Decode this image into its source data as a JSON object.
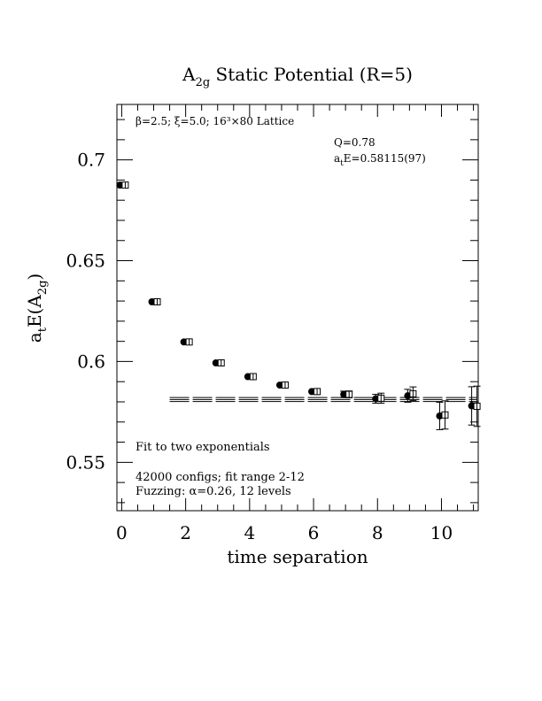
{
  "chart_data": {
    "type": "scatter",
    "title": {
      "main": "A",
      "sub": "2g",
      "rest": " Static Potential (R=5)"
    },
    "xlabel": "time separation",
    "ylabel": {
      "pre": "a",
      "pre_sub": "t",
      "mid": "E(A",
      "sub": "2g",
      "post": ")"
    },
    "xlim": [
      -0.15,
      11.15
    ],
    "ylim": [
      0.526,
      0.7275
    ],
    "x_ticks": [
      {
        "value": 0,
        "label": "0"
      },
      {
        "value": 2,
        "label": "2"
      },
      {
        "value": 4,
        "label": "4"
      },
      {
        "value": 6,
        "label": "6"
      },
      {
        "value": 8,
        "label": "8"
      },
      {
        "value": 10,
        "label": "10"
      }
    ],
    "y_ticks": [
      {
        "value": 0.55,
        "label": "0.55"
      },
      {
        "value": 0.6,
        "label": "0.6"
      },
      {
        "value": 0.65,
        "label": "0.65"
      },
      {
        "value": 0.7,
        "label": "0.7"
      }
    ],
    "series": [
      {
        "marker": "filled-circle",
        "points": [
          {
            "x": 0,
            "y": 0.6875,
            "err": 0.0006
          },
          {
            "x": 1,
            "y": 0.6296,
            "err": 0.0006
          },
          {
            "x": 2,
            "y": 0.6097,
            "err": 0.0007
          },
          {
            "x": 3,
            "y": 0.5993,
            "err": 0.0008
          },
          {
            "x": 4,
            "y": 0.5925,
            "err": 0.0009
          },
          {
            "x": 5,
            "y": 0.5883,
            "err": 0.0011
          },
          {
            "x": 6,
            "y": 0.5851,
            "err": 0.0013
          },
          {
            "x": 7,
            "y": 0.5837,
            "err": 0.0016
          },
          {
            "x": 8,
            "y": 0.5815,
            "err": 0.0022
          },
          {
            "x": 9,
            "y": 0.583,
            "err": 0.0032
          },
          {
            "x": 10,
            "y": 0.573,
            "err": 0.0068
          },
          {
            "x": 11,
            "y": 0.578,
            "err": 0.0095
          }
        ]
      },
      {
        "marker": "open-square",
        "points": [
          {
            "x": 0,
            "y": 0.6875,
            "err": 0.0007
          },
          {
            "x": 1,
            "y": 0.6296,
            "err": 0.0007
          },
          {
            "x": 2,
            "y": 0.6097,
            "err": 0.0008
          },
          {
            "x": 3,
            "y": 0.5993,
            "err": 0.0009
          },
          {
            "x": 4,
            "y": 0.5925,
            "err": 0.001
          },
          {
            "x": 5,
            "y": 0.5883,
            "err": 0.0012
          },
          {
            "x": 6,
            "y": 0.5851,
            "err": 0.0014
          },
          {
            "x": 7,
            "y": 0.5837,
            "err": 0.0017
          },
          {
            "x": 8,
            "y": 0.5818,
            "err": 0.0025
          },
          {
            "x": 9,
            "y": 0.584,
            "err": 0.0034
          },
          {
            "x": 10,
            "y": 0.5735,
            "err": 0.007
          },
          {
            "x": 11,
            "y": 0.5778,
            "err": 0.01
          }
        ]
      }
    ],
    "fit": {
      "value": 0.58115,
      "error": 0.00097,
      "x_start": 1.5,
      "x_end": 11.1
    },
    "annotations": {
      "lattice": "β=2.5; ξ=5.0; 16³×80 Lattice",
      "q": "Q=0.78",
      "energy": {
        "pre": "a",
        "pre_sub": "t",
        "rest": "E=0.58115(97)"
      },
      "fit_desc": "Fit to two exponentials",
      "configs": "42000 configs; fit range 2-12",
      "fuzzing": "Fuzzing: α=0.26, 12 levels"
    },
    "grid": false,
    "legend": "none"
  }
}
